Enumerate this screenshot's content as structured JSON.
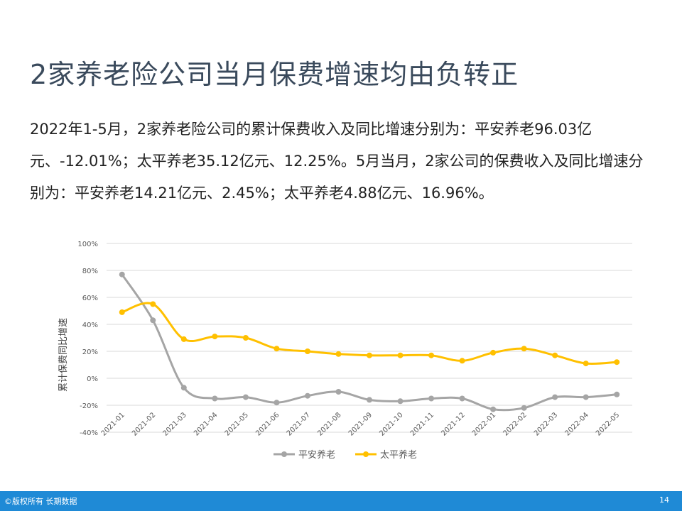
{
  "page": {
    "title": "2家养老险公司当月保费增速均由负转正",
    "body_text": "2022年1-5月，2家养老险公司的累计保费收入及同比增速分别为：平安养老96.03亿元、-12.01%；太平养老35.12亿元、12.25%。5月当月，2家公司的保费收入及同比增速分别为：平安养老14.21亿元、2.45%；太平养老4.88亿元、16.96%。",
    "footer_left": "©版权所有 长期数据",
    "page_number": "14"
  },
  "colors": {
    "title": "#3a4a5c",
    "footer": "#1f8ad6",
    "series_pingan": "#a5a5a5",
    "series_taiping": "#ffc000",
    "gridline": "#d9d9d9"
  },
  "chart_data": {
    "type": "line",
    "title": "",
    "xlabel": "",
    "ylabel": "累计保费同比增速",
    "ylim": [
      -40,
      100
    ],
    "yticks": [
      100,
      80,
      60,
      40,
      20,
      0,
      -20,
      -40
    ],
    "ytick_labels": [
      "100%",
      "80%",
      "60%",
      "40%",
      "20%",
      "0%",
      "-20%",
      "-40%"
    ],
    "grid": true,
    "legend_position": "bottom",
    "categories": [
      "2021-01",
      "2021-02",
      "2021-03",
      "2021-04",
      "2021-05",
      "2021-06",
      "2021-07",
      "2021-08",
      "2021-09",
      "2021-10",
      "2021-11",
      "2021-12",
      "2022-01",
      "2022-02",
      "2022-03",
      "2022-04",
      "2022-05"
    ],
    "series": [
      {
        "name": "平安养老",
        "values": [
          77,
          43,
          -7,
          -15,
          -14,
          -18,
          -13,
          -10,
          -16,
          -17,
          -15,
          -15,
          -23,
          -22,
          -14,
          -14,
          -12
        ]
      },
      {
        "name": "太平养老",
        "values": [
          49,
          55,
          29,
          31,
          30,
          22,
          20,
          18,
          17,
          17,
          17,
          13,
          19,
          22,
          17,
          11,
          12
        ]
      }
    ]
  }
}
